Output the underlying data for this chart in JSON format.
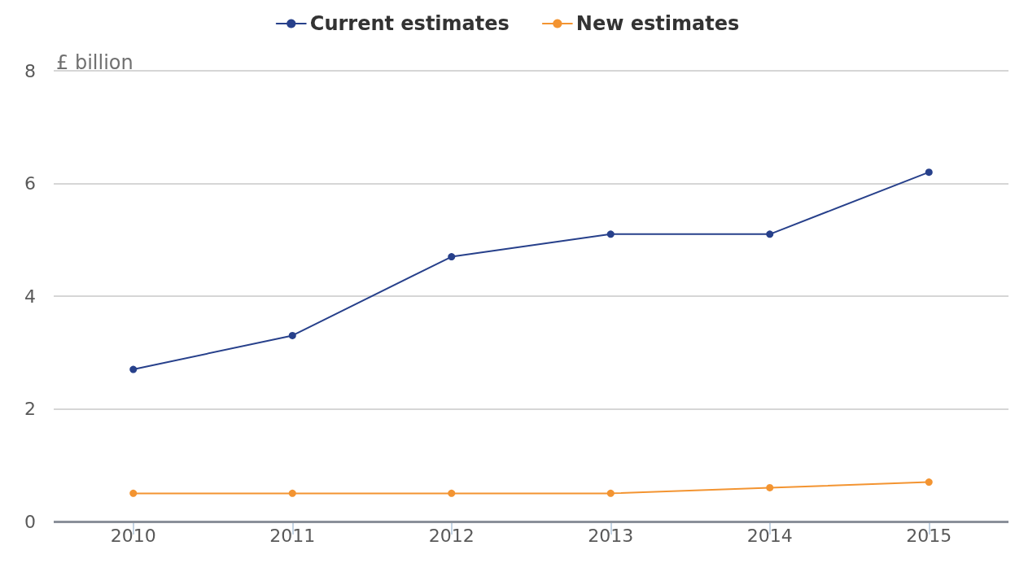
{
  "chart_data": {
    "type": "line",
    "ylabel": "£ billion",
    "categories": [
      "2010",
      "2011",
      "2012",
      "2013",
      "2014",
      "2015"
    ],
    "series": [
      {
        "name": "Current estimates",
        "color": "#27408b",
        "values": [
          2.7,
          3.3,
          4.7,
          5.1,
          5.1,
          6.2
        ]
      },
      {
        "name": "New estimates",
        "color": "#f39431",
        "values": [
          0.5,
          0.5,
          0.5,
          0.5,
          0.6,
          0.7
        ]
      }
    ],
    "ylim": [
      0,
      8
    ],
    "yticks": [
      0,
      2,
      4,
      6,
      8
    ],
    "grid": "y",
    "legend": "top",
    "marker": "circle",
    "line_style": "solid"
  }
}
